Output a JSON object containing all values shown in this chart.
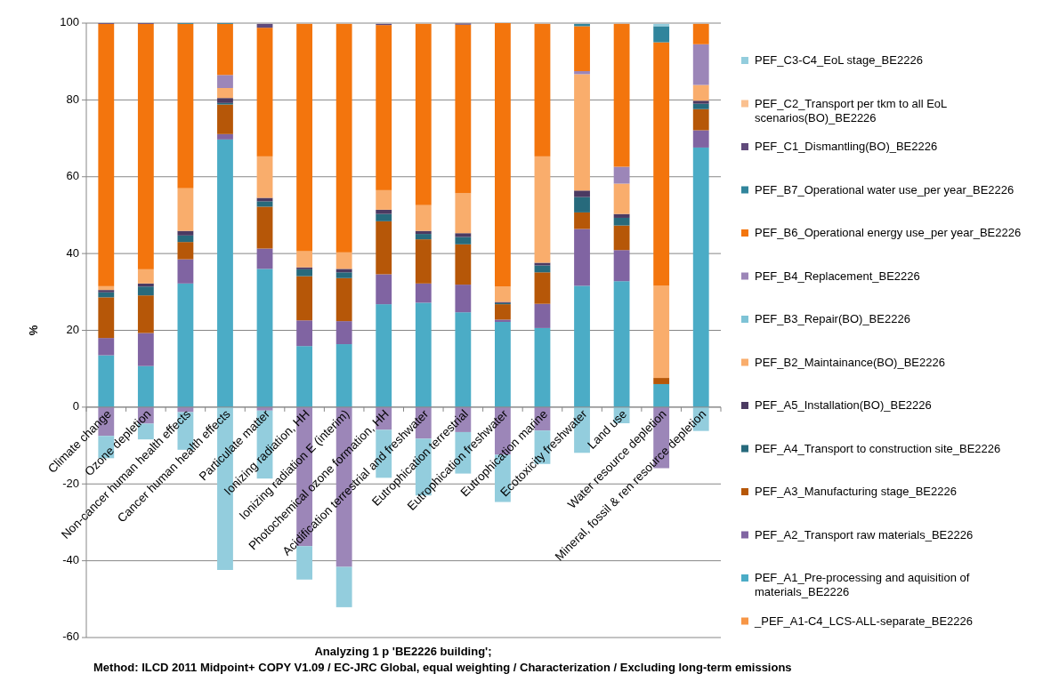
{
  "chart_data": {
    "type": "bar",
    "stacked": true,
    "ylabel": "%",
    "xlabel": "Analyzing 1 p 'BE2226 building';\nMethod: ILCD 2011 Midpoint+ COPY V1.09 / EC-JRC Global, equal weighting / Characterization / Excluding long-term emissions",
    "categories": [
      "Climate change",
      "Ozone depletion",
      "Non-cancer human health effects",
      "Cancer human health effects",
      "Particulate matter",
      "Ionizing radiation, HH",
      "Ionizing radiation E (interim)",
      "Photochemical ozone formation, HH",
      "Acidification terrestrial and freshwater",
      "Eutrophication terrestrial",
      "Eutrophication freshwater",
      "Eutrophication marine",
      "Ecotoxicity freshwater",
      "Land use",
      "Water resource depletion",
      "Mineral, fossil & ren resource depletion"
    ],
    "ylim": [
      -60,
      100
    ],
    "yticks": [
      -60,
      -40,
      -20,
      0,
      20,
      40,
      60,
      80,
      100
    ],
    "grid": "y",
    "legend": "right",
    "series": [
      {
        "name": "_PEF_A1-C4_LCS-ALL-separate_BE2226",
        "color": "#f79646",
        "values": [
          0,
          0,
          0,
          0,
          0,
          0,
          0,
          0,
          0,
          0,
          0,
          0,
          0,
          0,
          0,
          0
        ]
      },
      {
        "name": "PEF_A1_Pre-processing and aquisition of materials_BE2226",
        "color": "#4bacc6",
        "values": [
          13.5,
          10.7,
          32.2,
          69.7,
          36.0,
          15.9,
          16.4,
          26.8,
          27.2,
          24.7,
          22.2,
          20.6,
          31.6,
          32.8,
          6.0,
          67.6
        ]
      },
      {
        "name": "PEF_A2_Transport raw materials_BE2226",
        "color": "#8064a2",
        "values": [
          4.5,
          8.6,
          6.3,
          1.4,
          5.3,
          6.7,
          6.0,
          7.8,
          5.0,
          7.2,
          0.6,
          6.3,
          14.8,
          8.1,
          0,
          4.5
        ]
      },
      {
        "name": "PEF_A3_Manufacturing stage_BE2226",
        "color": "#b65708",
        "values": [
          10.6,
          9.8,
          4.5,
          7.7,
          10.9,
          11.5,
          11.2,
          13.8,
          11.5,
          10.5,
          4.0,
          8.2,
          4.3,
          6.4,
          1.6,
          5.5
        ]
      },
      {
        "name": "PEF_A4_Transport to construction site_BE2226",
        "color": "#276a7c",
        "values": [
          1.3,
          2.3,
          1.7,
          0.4,
          1.4,
          1.8,
          1.5,
          1.9,
          1.4,
          1.9,
          0.3,
          1.8,
          4.0,
          2.0,
          0,
          1.4
        ]
      },
      {
        "name": "PEF_A5_Installation(BO)_BE2226",
        "color": "#4b3a62",
        "values": [
          0.6,
          0.8,
          1.2,
          1.3,
          0.9,
          0.5,
          0.9,
          1.1,
          0.8,
          1.0,
          0.3,
          0.7,
          1.7,
          1.0,
          0,
          0.8
        ]
      },
      {
        "name": "PEF_B2_Maintainance(BO)_BE2226",
        "color": "#f9ad6c",
        "values": [
          1.0,
          3.7,
          11.1,
          2.6,
          10.8,
          4.2,
          4.3,
          5.1,
          6.7,
          10.4,
          4.0,
          27.7,
          30.3,
          7.9,
          24.0,
          4.1
        ]
      },
      {
        "name": "PEF_B3_Repair(BO)_BE2226",
        "color": "#7ec3d6",
        "values": [
          0,
          0,
          0,
          0,
          0,
          0,
          0,
          0,
          0,
          0,
          0,
          0,
          0,
          0,
          0,
          0
        ]
      },
      {
        "name": "PEF_B4_Replacement_BE2226",
        "color": "#9c86b8",
        "values": [
          -7.5,
          -4.3,
          -1.3,
          3.4,
          -0.9,
          -36.2,
          -41.6,
          -5.9,
          -8.2,
          -6.5,
          -12.4,
          -6.1,
          0.8,
          4.4,
          -15.9,
          10.6
        ]
      },
      {
        "name": "PEF_B6_Operational energy use_per year_BE2226",
        "color": "#f3750d",
        "values": [
          68.3,
          63.9,
          42.8,
          13.3,
          33.5,
          59.2,
          59.5,
          43.0,
          47.2,
          43.9,
          68.6,
          34.5,
          11.7,
          37.2,
          63.4,
          5.3
        ]
      },
      {
        "name": "PEF_B7_Operational water use_per year_BE2226",
        "color": "#31859c",
        "values": [
          0,
          0,
          0.2,
          0.2,
          0,
          0,
          0,
          0,
          0,
          0,
          0,
          0,
          0.6,
          0,
          4.2,
          0
        ]
      },
      {
        "name": "PEF_C1_Dismantling(BO)_BE2226",
        "color": "#604a7b",
        "values": [
          0.2,
          0.2,
          0,
          0,
          1.0,
          0,
          0,
          0.3,
          0,
          0.3,
          0,
          0,
          0,
          0,
          0,
          0
        ]
      },
      {
        "name": "PEF_C2_Transport per tkm to all EoL scenarios(BO)_BE2226",
        "color": "#fac08f",
        "values": [
          0,
          0,
          0,
          0,
          0,
          0,
          0,
          0,
          0,
          0,
          0,
          0,
          0,
          0,
          0,
          0
        ]
      },
      {
        "name": "PEF_C3-C4_EoL stage_BE2226",
        "color": "#93cddd",
        "values": [
          -5.8,
          -4.1,
          -9.8,
          -42.4,
          -17.7,
          -8.7,
          -10.5,
          -12.5,
          -14.8,
          -10.8,
          -12.3,
          -8.7,
          -11.9,
          -4.2,
          0.6,
          -6.2
        ]
      }
    ]
  }
}
